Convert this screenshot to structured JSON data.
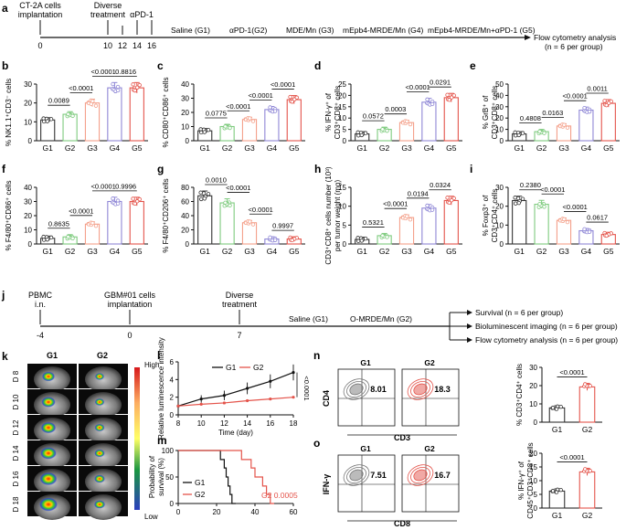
{
  "figure": {
    "panels": {
      "a": "a",
      "b": "b",
      "c": "c",
      "d": "d",
      "e": "e",
      "f": "f",
      "g": "g",
      "h": "h",
      "i": "i",
      "j": "j",
      "k": "k",
      "l": "l",
      "m": "m",
      "n": "n",
      "o": "o"
    },
    "timeline_a": {
      "events": [
        "CT-2A cells",
        "implantation",
        "Diverse",
        "treatment",
        "αPD-1"
      ],
      "days": [
        "0",
        "10",
        "12",
        "14",
        "16"
      ],
      "groups": [
        "Saline (G1)",
        "αPD-1(G2)",
        "MDE/Mn (G3)",
        "mEpb4-MRDE/Mn (G4)",
        "mEpb4-MRDE/Mn+αPD-1 (G5)"
      ],
      "endpoint": "Flow cytometry analysis",
      "n_note": "(n = 6 per group)"
    },
    "timeline_j": {
      "events": [
        "PBMC",
        "i.n.",
        "GBM#01 cells",
        "implantation",
        "Diverse",
        "treatment"
      ],
      "days": [
        "-4",
        "0",
        "7"
      ],
      "groups": [
        "Saline (G1)",
        "O-MRDE/Mn (G2)"
      ],
      "outcomes": [
        "Survival (n = 6 per group)",
        "Bioluminescent imaging (n = 6 per group)",
        "Flow cytometry analysis (n = 6 per group)"
      ]
    },
    "imaging_k": {
      "columns": [
        "G1",
        "G2"
      ],
      "rows": [
        "D 8",
        "D 10",
        "D 12",
        "D 14",
        "D 16",
        "D 18"
      ],
      "scale_high": "High",
      "scale_low": "Low"
    },
    "flow_n": {
      "columns": [
        "G1",
        "G2"
      ],
      "values": [
        "8.01",
        "18.3"
      ],
      "xlabel": "CD3",
      "ylabel": "CD4"
    },
    "flow_o": {
      "columns": [
        "G1",
        "G2"
      ],
      "values": [
        "7.51",
        "16.7"
      ],
      "xlabel": "CD8",
      "ylabel": "IFN-γ"
    }
  },
  "chart_data": [
    {
      "id": "b",
      "type": "bar",
      "categories": [
        "G1",
        "G2",
        "G3",
        "G4",
        "G5"
      ],
      "values": [
        11,
        14,
        20,
        28,
        28
      ],
      "ylabel": "% NK1.1⁺CD3⁻ cells",
      "ylim": [
        0,
        30
      ],
      "yticks": [
        "0",
        "10",
        "20",
        "30"
      ],
      "pvalues": [
        {
          "pair": [
            0,
            1
          ],
          "label": "0.0089"
        },
        {
          "pair": [
            1,
            2
          ],
          "label": "<0.0001"
        },
        {
          "pair": [
            2,
            3
          ],
          "label": "<0.0001"
        },
        {
          "pair": [
            3,
            4
          ],
          "label": "0.8816"
        }
      ]
    },
    {
      "id": "c",
      "type": "bar",
      "categories": [
        "G1",
        "G2",
        "G3",
        "G4",
        "G5"
      ],
      "values": [
        7,
        10,
        15,
        22,
        29
      ],
      "ylabel": "% CD80⁺CD86⁺ cells",
      "ylim": [
        0,
        40
      ],
      "yticks": [
        "0",
        "10",
        "20",
        "30",
        "40"
      ],
      "pvalues": [
        {
          "pair": [
            0,
            1
          ],
          "label": "0.0775"
        },
        {
          "pair": [
            1,
            2
          ],
          "label": "<0.0001"
        },
        {
          "pair": [
            2,
            3
          ],
          "label": "<0.0001"
        },
        {
          "pair": [
            3,
            4
          ],
          "label": "<0.0001"
        }
      ]
    },
    {
      "id": "d",
      "type": "bar",
      "categories": [
        "G1",
        "G2",
        "G3",
        "G4",
        "G5"
      ],
      "values": [
        3,
        5,
        8,
        17,
        19
      ],
      "ylabel": "% IFN-γ⁺ of CD3⁺CD8⁺ cells",
      "ylim": [
        0,
        25
      ],
      "yticks": [
        "0",
        "5",
        "10",
        "15",
        "20",
        "25"
      ],
      "pvalues": [
        {
          "pair": [
            0,
            1
          ],
          "label": "0.0572"
        },
        {
          "pair": [
            1,
            2
          ],
          "label": "0.0003"
        },
        {
          "pair": [
            2,
            3
          ],
          "label": "<0.0001"
        },
        {
          "pair": [
            3,
            4
          ],
          "label": "0.0291"
        }
      ]
    },
    {
      "id": "e",
      "type": "bar",
      "categories": [
        "G1",
        "G2",
        "G3",
        "G4",
        "G5"
      ],
      "values": [
        6,
        8,
        13,
        27,
        33
      ],
      "ylabel": "% GrB⁺ of CD3⁺CD8⁺ cells",
      "ylim": [
        0,
        50
      ],
      "yticks": [
        "0",
        "10",
        "20",
        "30",
        "40",
        "50"
      ],
      "pvalues": [
        {
          "pair": [
            0,
            1
          ],
          "label": "0.4808"
        },
        {
          "pair": [
            1,
            2
          ],
          "label": "0.0163"
        },
        {
          "pair": [
            2,
            3
          ],
          "label": "<0.0001"
        },
        {
          "pair": [
            3,
            4
          ],
          "label": "0.0011"
        }
      ]
    },
    {
      "id": "f",
      "type": "bar",
      "categories": [
        "G1",
        "G2",
        "G3",
        "G4",
        "G5"
      ],
      "values": [
        4,
        5,
        14,
        30,
        30
      ],
      "ylabel": "% F4/80⁺CD86⁺ cells",
      "ylim": [
        0,
        40
      ],
      "yticks": [
        "0",
        "10",
        "20",
        "30",
        "40"
      ],
      "pvalues": [
        {
          "pair": [
            0,
            1
          ],
          "label": "0.8635"
        },
        {
          "pair": [
            1,
            2
          ],
          "label": "<0.0001"
        },
        {
          "pair": [
            2,
            3
          ],
          "label": "<0.0001"
        },
        {
          "pair": [
            3,
            4
          ],
          "label": "0.9996"
        }
      ]
    },
    {
      "id": "g",
      "type": "bar",
      "categories": [
        "G1",
        "G2",
        "G3",
        "G4",
        "G5"
      ],
      "values": [
        68,
        58,
        30,
        7,
        7
      ],
      "ylabel": "% F4/80⁺CD206⁺ cells",
      "ylim": [
        0,
        80
      ],
      "yticks": [
        "0",
        "20",
        "40",
        "60",
        "80"
      ],
      "pvalues": [
        {
          "pair": [
            0,
            1
          ],
          "label": "0.0010"
        },
        {
          "pair": [
            1,
            2
          ],
          "label": "<0.0001"
        },
        {
          "pair": [
            2,
            3
          ],
          "label": "<0.0001"
        },
        {
          "pair": [
            3,
            4
          ],
          "label": "0.9997"
        }
      ]
    },
    {
      "id": "h",
      "type": "bar",
      "categories": [
        "G1",
        "G2",
        "G3",
        "G4",
        "G5"
      ],
      "values": [
        1.2,
        2.2,
        7,
        9.5,
        11.5
      ],
      "ylabel": "CD3⁺CD8⁺ cells number (10³) per tumor weight (mg)",
      "ylim": [
        0,
        15
      ],
      "yticks": [
        "0",
        "5",
        "10",
        "15"
      ],
      "pvalues": [
        {
          "pair": [
            0,
            1
          ],
          "label": "0.5321"
        },
        {
          "pair": [
            1,
            2
          ],
          "label": "<0.0001"
        },
        {
          "pair": [
            2,
            3
          ],
          "label": "0.0194"
        },
        {
          "pair": [
            3,
            4
          ],
          "label": "0.0324"
        }
      ]
    },
    {
      "id": "i",
      "type": "bar",
      "categories": [
        "G1",
        "G2",
        "G3",
        "G4",
        "G5"
      ],
      "values": [
        23,
        21,
        12.5,
        7,
        5
      ],
      "ylabel": "% Foxp3⁺ of CD3⁺CD4⁺ cells",
      "ylim": [
        0,
        30
      ],
      "yticks": [
        "0",
        "10",
        "20",
        "30"
      ],
      "pvalues": [
        {
          "pair": [
            0,
            1
          ],
          "label": "0.2380"
        },
        {
          "pair": [
            1,
            2
          ],
          "label": "<0.0001"
        },
        {
          "pair": [
            2,
            3
          ],
          "label": "<0.0001"
        },
        {
          "pair": [
            3,
            4
          ],
          "label": "0.0617"
        }
      ]
    },
    {
      "id": "l",
      "type": "line",
      "series": [
        {
          "name": "G1",
          "x": [
            8,
            10,
            12,
            14,
            16,
            18
          ],
          "values": [
            1.0,
            1.8,
            2.2,
            3.0,
            3.8,
            4.8
          ]
        },
        {
          "name": "G2",
          "x": [
            8,
            10,
            12,
            14,
            16,
            18
          ],
          "values": [
            1.0,
            1.2,
            1.35,
            1.6,
            1.8,
            2.0
          ]
        }
      ],
      "xlabel": "Time (day)",
      "ylabel": "Relative luminescence intensity",
      "xlim": [
        8,
        18
      ],
      "ylim": [
        0,
        6
      ],
      "xticks": [
        "8",
        "10",
        "12",
        "14",
        "16",
        "18"
      ],
      "yticks": [
        "0",
        "2",
        "4",
        "6"
      ],
      "pvalue": "<0.0001"
    },
    {
      "id": "m",
      "type": "line",
      "series": [
        {
          "name": "G1",
          "x": [
            0,
            22,
            22,
            24,
            24,
            25,
            25,
            26,
            26,
            27,
            27,
            28,
            28,
            30
          ],
          "values": [
            100,
            100,
            83,
            83,
            67,
            67,
            50,
            50,
            33,
            33,
            17,
            17,
            0,
            0
          ]
        },
        {
          "name": "G2",
          "x": [
            0,
            33,
            33,
            38,
            38,
            40,
            40,
            44,
            44,
            46,
            46,
            48,
            48,
            50
          ],
          "values": [
            100,
            100,
            83,
            83,
            67,
            67,
            50,
            50,
            33,
            33,
            17,
            17,
            0,
            0
          ]
        }
      ],
      "xlabel": "",
      "ylabel": "Probability of survival (%)",
      "xlim": [
        0,
        60
      ],
      "ylim": [
        0,
        100
      ],
      "xticks": [
        "0",
        "20",
        "40",
        "60"
      ],
      "yticks": [
        "0",
        "50",
        "100"
      ],
      "pvalue": "G2 0.0005"
    },
    {
      "id": "n_bar",
      "type": "bar",
      "categories": [
        "G1",
        "G2"
      ],
      "values": [
        7.8,
        19.3
      ],
      "ylabel": "% CD3⁺CD4⁺ cells",
      "ylim": [
        0,
        30
      ],
      "yticks": [
        "0",
        "10",
        "20",
        "30"
      ],
      "pvalues": [
        {
          "pair": [
            0,
            1
          ],
          "label": "<0.0001"
        }
      ]
    },
    {
      "id": "o_bar",
      "type": "bar",
      "categories": [
        "G1",
        "G2"
      ],
      "values": [
        6.2,
        13.2
      ],
      "ylabel": "% IFN-γ⁺ of CD45⁺CD3⁺CD8⁺ cells",
      "ylim": [
        0,
        20
      ],
      "yticks": [
        "0",
        "5",
        "10",
        "15",
        "20"
      ],
      "pvalues": [
        {
          "pair": [
            0,
            1
          ],
          "label": "<0.0001"
        }
      ]
    }
  ]
}
